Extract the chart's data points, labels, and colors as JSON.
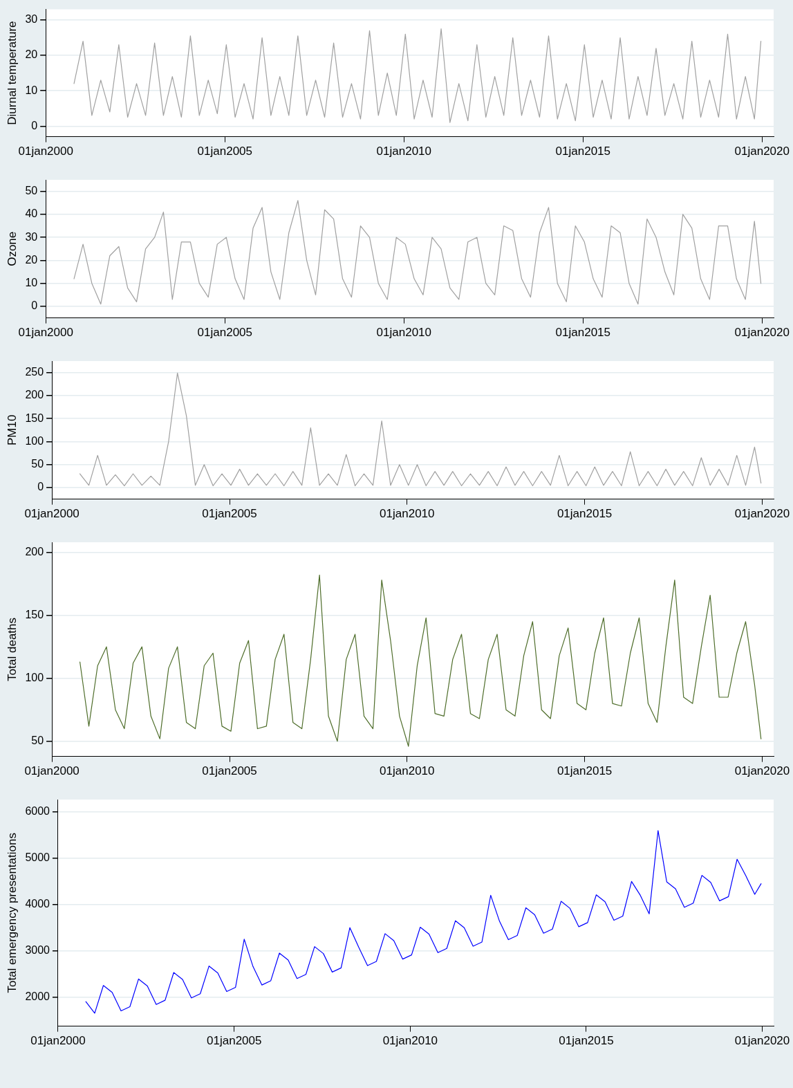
{
  "chart_data": [
    {
      "type": "line",
      "ylabel": "Diurnal temperature",
      "color": "#a0a0a0",
      "grid": "y",
      "xlim": [
        "2000-01-01",
        "2020-04-28"
      ],
      "xticks": [
        {
          "value": "2000-01-01",
          "label": "01jan2000"
        },
        {
          "value": "2005-01-01",
          "label": "01jan2005"
        },
        {
          "value": "2010-01-01",
          "label": "01jan2010"
        },
        {
          "value": "2015-01-01",
          "label": "01jan2015"
        },
        {
          "value": "2020-01-01",
          "label": "01jan2020"
        }
      ],
      "ylim": [
        -3,
        33
      ],
      "yticks": [
        0,
        10,
        20,
        30
      ],
      "x": [
        "2000-10-15",
        "2001-01-15",
        "2001-04-15",
        "2001-07-15",
        "2001-10-15",
        "2002-01-15",
        "2002-04-15",
        "2002-07-15",
        "2002-10-15",
        "2003-01-15",
        "2003-04-15",
        "2003-07-15",
        "2003-10-15",
        "2004-01-15",
        "2004-04-15",
        "2004-07-15",
        "2004-10-15",
        "2005-01-15",
        "2005-04-15",
        "2005-07-15",
        "2005-10-15",
        "2006-01-15",
        "2006-04-15",
        "2006-07-15",
        "2006-10-15",
        "2007-01-15",
        "2007-04-15",
        "2007-07-15",
        "2007-10-15",
        "2008-01-15",
        "2008-04-15",
        "2008-07-15",
        "2008-10-15",
        "2009-01-15",
        "2009-04-15",
        "2009-07-15",
        "2009-10-15",
        "2010-01-15",
        "2010-04-15",
        "2010-07-15",
        "2010-10-15",
        "2011-01-15",
        "2011-04-15",
        "2011-07-15",
        "2011-10-15",
        "2012-01-15",
        "2012-04-15",
        "2012-07-15",
        "2012-10-15",
        "2013-01-15",
        "2013-04-15",
        "2013-07-15",
        "2013-10-15",
        "2014-01-15",
        "2014-04-15",
        "2014-07-15",
        "2014-10-15",
        "2015-01-15",
        "2015-04-15",
        "2015-07-15",
        "2015-10-15",
        "2016-01-15",
        "2016-04-15",
        "2016-07-15",
        "2016-10-15",
        "2017-01-15",
        "2017-04-15",
        "2017-07-15",
        "2017-10-15",
        "2018-01-15",
        "2018-04-15",
        "2018-07-15",
        "2018-10-15",
        "2019-01-15",
        "2019-04-15",
        "2019-07-15",
        "2019-10-15",
        "2019-12-20"
      ],
      "values": [
        12,
        24,
        3,
        13,
        4,
        23,
        2.5,
        12,
        3,
        23.5,
        3,
        14,
        2.5,
        25.5,
        3,
        13,
        3.5,
        23,
        2.5,
        12,
        2,
        25,
        3,
        14,
        3,
        25.5,
        3,
        13,
        2.5,
        23.5,
        2.5,
        12,
        2,
        27,
        3,
        15,
        3,
        26,
        2,
        13,
        2.5,
        27.5,
        1,
        12,
        1.5,
        23,
        2.5,
        14,
        3,
        25,
        3,
        13,
        2.5,
        25.5,
        2,
        12,
        1.5,
        23,
        2.5,
        13,
        2,
        25,
        2,
        14,
        3,
        22,
        3,
        12,
        2,
        24,
        2.5,
        13,
        2.5,
        26,
        2,
        14,
        2,
        24
      ]
    },
    {
      "type": "line",
      "ylabel": "Ozone",
      "color": "#a0a0a0",
      "grid": "y",
      "xlim": [
        "2000-01-01",
        "2020-04-28"
      ],
      "xticks": [
        {
          "value": "2000-01-01",
          "label": "01jan2000"
        },
        {
          "value": "2005-01-01",
          "label": "01jan2005"
        },
        {
          "value": "2010-01-01",
          "label": "01jan2010"
        },
        {
          "value": "2015-01-01",
          "label": "01jan2015"
        },
        {
          "value": "2020-01-01",
          "label": "01jan2020"
        }
      ],
      "ylim": [
        -5,
        55
      ],
      "yticks": [
        0,
        10,
        20,
        30,
        40,
        50
      ],
      "x": [
        "2000-10-15",
        "2001-01-15",
        "2001-04-15",
        "2001-07-15",
        "2001-10-15",
        "2002-01-15",
        "2002-04-15",
        "2002-07-15",
        "2002-10-15",
        "2003-01-15",
        "2003-04-15",
        "2003-07-15",
        "2003-10-15",
        "2004-01-15",
        "2004-04-15",
        "2004-07-15",
        "2004-10-15",
        "2005-01-15",
        "2005-04-15",
        "2005-07-15",
        "2005-10-15",
        "2006-01-15",
        "2006-04-15",
        "2006-07-15",
        "2006-10-15",
        "2007-01-15",
        "2007-04-15",
        "2007-07-15",
        "2007-10-15",
        "2008-01-15",
        "2008-04-15",
        "2008-07-15",
        "2008-10-15",
        "2009-01-15",
        "2009-04-15",
        "2009-07-15",
        "2009-10-15",
        "2010-01-15",
        "2010-04-15",
        "2010-07-15",
        "2010-10-15",
        "2011-01-15",
        "2011-04-15",
        "2011-07-15",
        "2011-10-15",
        "2012-01-15",
        "2012-04-15",
        "2012-07-15",
        "2012-10-15",
        "2013-01-15",
        "2013-04-15",
        "2013-07-15",
        "2013-10-15",
        "2014-01-15",
        "2014-04-15",
        "2014-07-15",
        "2014-10-15",
        "2015-01-15",
        "2015-04-15",
        "2015-07-15",
        "2015-10-15",
        "2016-01-15",
        "2016-04-15",
        "2016-07-15",
        "2016-10-15",
        "2017-01-15",
        "2017-04-15",
        "2017-07-15",
        "2017-10-15",
        "2018-01-15",
        "2018-04-15",
        "2018-07-15",
        "2018-10-15",
        "2019-01-15",
        "2019-04-15",
        "2019-07-15",
        "2019-10-15",
        "2019-12-20"
      ],
      "values": [
        12,
        27,
        10,
        1,
        22,
        26,
        8,
        2,
        25,
        30,
        41,
        3,
        28,
        28,
        10,
        4,
        27,
        30,
        12,
        3,
        34,
        43,
        15,
        3,
        32,
        46,
        20,
        5,
        42,
        38,
        12,
        4,
        35,
        30,
        10,
        3,
        30,
        27,
        12,
        5,
        30,
        25,
        8,
        3,
        28,
        30,
        10,
        5,
        35,
        33,
        12,
        4,
        32,
        43,
        10,
        2,
        35,
        28,
        12,
        4,
        35,
        32,
        10,
        1,
        38,
        30,
        15,
        5,
        40,
        34,
        12,
        3,
        35,
        35,
        12,
        3,
        37,
        10
      ]
    },
    {
      "type": "line",
      "ylabel": "PM10",
      "color": "#a0a0a0",
      "grid": "y",
      "xlim": [
        "2000-01-01",
        "2020-04-28"
      ],
      "xticks": [
        {
          "value": "2000-01-01",
          "label": "01jan2000"
        },
        {
          "value": "2005-01-01",
          "label": "01jan2005"
        },
        {
          "value": "2010-01-01",
          "label": "01jan2010"
        },
        {
          "value": "2015-01-01",
          "label": "01jan2015"
        },
        {
          "value": "2020-01-01",
          "label": "01jan2020"
        }
      ],
      "ylim": [
        -25,
        275
      ],
      "yticks": [
        0,
        50,
        100,
        150,
        200,
        250
      ],
      "x": [
        "2000-10-15",
        "2001-01-15",
        "2001-04-15",
        "2001-07-15",
        "2001-10-15",
        "2002-01-15",
        "2002-04-15",
        "2002-07-15",
        "2002-10-15",
        "2003-01-15",
        "2003-04-15",
        "2003-07-15",
        "2003-10-15",
        "2004-01-15",
        "2004-04-15",
        "2004-07-15",
        "2004-10-15",
        "2005-01-15",
        "2005-04-15",
        "2005-07-15",
        "2005-10-15",
        "2006-01-15",
        "2006-04-15",
        "2006-07-15",
        "2006-10-15",
        "2007-01-15",
        "2007-04-15",
        "2007-07-15",
        "2007-10-15",
        "2008-01-15",
        "2008-04-15",
        "2008-07-15",
        "2008-10-15",
        "2009-01-15",
        "2009-04-15",
        "2009-07-15",
        "2009-10-15",
        "2010-01-15",
        "2010-04-15",
        "2010-07-15",
        "2010-10-15",
        "2011-01-15",
        "2011-04-15",
        "2011-07-15",
        "2011-10-15",
        "2012-01-15",
        "2012-04-15",
        "2012-07-15",
        "2012-10-15",
        "2013-01-15",
        "2013-04-15",
        "2013-07-15",
        "2013-10-15",
        "2014-01-15",
        "2014-04-15",
        "2014-07-15",
        "2014-10-15",
        "2015-01-15",
        "2015-04-15",
        "2015-07-15",
        "2015-10-15",
        "2016-01-15",
        "2016-04-15",
        "2016-07-15",
        "2016-10-15",
        "2017-01-15",
        "2017-04-15",
        "2017-07-15",
        "2017-10-15",
        "2018-01-15",
        "2018-04-15",
        "2018-07-15",
        "2018-10-15",
        "2019-01-15",
        "2019-04-15",
        "2019-07-15",
        "2019-10-15",
        "2019-12-20"
      ],
      "values": [
        30,
        5,
        70,
        5,
        28,
        4,
        30,
        5,
        25,
        5,
        100,
        249,
        156,
        5,
        50,
        4,
        30,
        5,
        40,
        5,
        30,
        5,
        30,
        4,
        35,
        5,
        130,
        5,
        30,
        5,
        72,
        4,
        30,
        5,
        145,
        5,
        50,
        5,
        50,
        4,
        35,
        5,
        35,
        4,
        30,
        5,
        35,
        4,
        45,
        5,
        35,
        4,
        35,
        5,
        70,
        4,
        35,
        4,
        45,
        5,
        35,
        4,
        78,
        4,
        35,
        4,
        40,
        5,
        35,
        4,
        65,
        5,
        40,
        5,
        70,
        5,
        88,
        10
      ]
    },
    {
      "type": "line",
      "ylabel": "Total deaths",
      "color": "#4e6d2a",
      "grid": "y",
      "xlim": [
        "2000-01-01",
        "2020-04-28"
      ],
      "xticks": [
        {
          "value": "2000-01-01",
          "label": "01jan2000"
        },
        {
          "value": "2005-01-01",
          "label": "01jan2005"
        },
        {
          "value": "2010-01-01",
          "label": "01jan2010"
        },
        {
          "value": "2015-01-01",
          "label": "01jan2015"
        },
        {
          "value": "2020-01-01",
          "label": "01jan2020"
        }
      ],
      "ylim": [
        38,
        208
      ],
      "yticks": [
        50,
        100,
        150,
        200
      ],
      "x": [
        "2000-10-15",
        "2001-01-15",
        "2001-04-15",
        "2001-07-15",
        "2001-10-15",
        "2002-01-15",
        "2002-04-15",
        "2002-07-15",
        "2002-10-15",
        "2003-01-15",
        "2003-04-15",
        "2003-07-15",
        "2003-10-15",
        "2004-01-15",
        "2004-04-15",
        "2004-07-15",
        "2004-10-15",
        "2005-01-15",
        "2005-04-15",
        "2005-07-15",
        "2005-10-15",
        "2006-01-15",
        "2006-04-15",
        "2006-07-15",
        "2006-10-15",
        "2007-01-15",
        "2007-04-15",
        "2007-07-15",
        "2007-10-15",
        "2008-01-15",
        "2008-04-15",
        "2008-07-15",
        "2008-10-15",
        "2009-01-15",
        "2009-04-15",
        "2009-07-15",
        "2009-10-15",
        "2010-01-15",
        "2010-04-15",
        "2010-07-15",
        "2010-10-15",
        "2011-01-15",
        "2011-04-15",
        "2011-07-15",
        "2011-10-15",
        "2012-01-15",
        "2012-04-15",
        "2012-07-15",
        "2012-10-15",
        "2013-01-15",
        "2013-04-15",
        "2013-07-15",
        "2013-10-15",
        "2014-01-15",
        "2014-04-15",
        "2014-07-15",
        "2014-10-15",
        "2015-01-15",
        "2015-04-15",
        "2015-07-15",
        "2015-10-15",
        "2016-01-15",
        "2016-04-15",
        "2016-07-15",
        "2016-10-15",
        "2017-01-15",
        "2017-04-15",
        "2017-07-15",
        "2017-10-15",
        "2018-01-15",
        "2018-04-15",
        "2018-07-15",
        "2018-10-15",
        "2019-01-15",
        "2019-04-15",
        "2019-07-15",
        "2019-10-15",
        "2019-12-20"
      ],
      "values": [
        113,
        62,
        110,
        125,
        75,
        60,
        112,
        125,
        70,
        52,
        108,
        125,
        65,
        60,
        110,
        120,
        62,
        58,
        112,
        130,
        60,
        62,
        115,
        135,
        65,
        60,
        115,
        182,
        70,
        50,
        115,
        135,
        70,
        60,
        178,
        130,
        70,
        46,
        110,
        148,
        72,
        70,
        115,
        135,
        72,
        68,
        115,
        135,
        75,
        70,
        118,
        145,
        75,
        68,
        118,
        140,
        80,
        75,
        120,
        148,
        80,
        78,
        120,
        148,
        80,
        65,
        125,
        178,
        85,
        80,
        125,
        166,
        85,
        85,
        120,
        145,
        95,
        52
      ]
    },
    {
      "type": "line",
      "ylabel": "Total emergency presentations",
      "color": "#0000ff",
      "grid": "y",
      "xlim": [
        "2000-01-01",
        "2020-04-28"
      ],
      "xticks": [
        {
          "value": "2000-01-01",
          "label": "01jan2000"
        },
        {
          "value": "2005-01-01",
          "label": "01jan2005"
        },
        {
          "value": "2010-01-01",
          "label": "01jan2010"
        },
        {
          "value": "2015-01-01",
          "label": "01jan2015"
        },
        {
          "value": "2020-01-01",
          "label": "01jan2020"
        }
      ],
      "ylim": [
        1370,
        6270
      ],
      "yticks": [
        2000,
        3000,
        4000,
        5000,
        6000
      ],
      "x": [
        "2000-10-15",
        "2001-01-15",
        "2001-04-15",
        "2001-07-15",
        "2001-10-15",
        "2002-01-15",
        "2002-04-15",
        "2002-07-15",
        "2002-10-15",
        "2003-01-15",
        "2003-04-15",
        "2003-07-15",
        "2003-10-15",
        "2004-01-15",
        "2004-04-15",
        "2004-07-15",
        "2004-10-15",
        "2005-01-15",
        "2005-04-15",
        "2005-07-15",
        "2005-10-15",
        "2006-01-15",
        "2006-04-15",
        "2006-07-15",
        "2006-10-15",
        "2007-01-15",
        "2007-04-15",
        "2007-07-15",
        "2007-10-15",
        "2008-01-15",
        "2008-04-15",
        "2008-07-15",
        "2008-10-15",
        "2009-01-15",
        "2009-04-15",
        "2009-07-15",
        "2009-10-15",
        "2010-01-15",
        "2010-04-15",
        "2010-07-15",
        "2010-10-15",
        "2011-01-15",
        "2011-04-15",
        "2011-07-15",
        "2011-10-15",
        "2012-01-15",
        "2012-04-15",
        "2012-07-15",
        "2012-10-15",
        "2013-01-15",
        "2013-04-15",
        "2013-07-15",
        "2013-10-15",
        "2014-01-15",
        "2014-04-15",
        "2014-07-15",
        "2014-10-15",
        "2015-01-15",
        "2015-04-15",
        "2015-07-15",
        "2015-10-15",
        "2016-01-15",
        "2016-04-15",
        "2016-07-15",
        "2016-10-15",
        "2017-01-15",
        "2017-04-15",
        "2017-07-15",
        "2017-10-15",
        "2018-01-15",
        "2018-04-15",
        "2018-07-15",
        "2018-10-15",
        "2019-01-15",
        "2019-04-15",
        "2019-07-15",
        "2019-10-15",
        "2019-12-20"
      ],
      "values": [
        1900,
        1650,
        2250,
        2100,
        1700,
        1790,
        2390,
        2240,
        1840,
        1930,
        2530,
        2380,
        1980,
        2070,
        2670,
        2520,
        2120,
        2210,
        3250,
        2660,
        2260,
        2350,
        2950,
        2800,
        2400,
        2490,
        3090,
        2940,
        2540,
        2630,
        3500,
        3080,
        2680,
        2770,
        3370,
        3220,
        2820,
        2910,
        3510,
        3360,
        2960,
        3050,
        3650,
        3500,
        3100,
        3190,
        4200,
        3640,
        3240,
        3330,
        3930,
        3780,
        3380,
        3470,
        4070,
        3920,
        3520,
        3610,
        4210,
        4060,
        3660,
        3750,
        4500,
        4200,
        3800,
        5600,
        4490,
        4340,
        3940,
        4030,
        4630,
        4480,
        4080,
        4170,
        4980,
        4620,
        4220,
        4450
      ]
    }
  ]
}
